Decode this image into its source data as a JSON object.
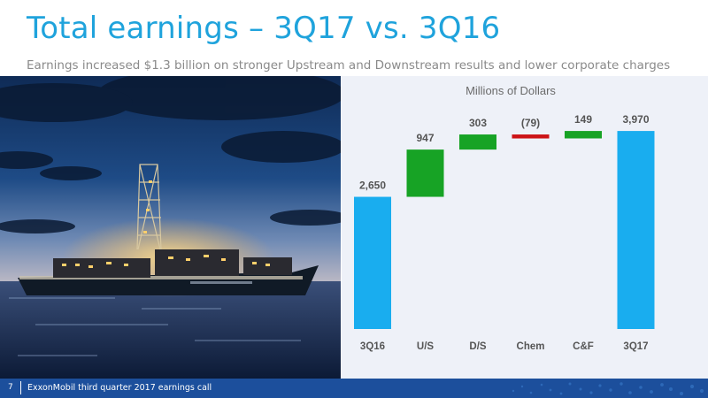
{
  "slide": {
    "title": "Total earnings – 3Q17 vs. 3Q16",
    "subtitle": "Earnings increased $1.3 billion on stronger Upstream and Downstream results and lower corporate charges"
  },
  "footer": {
    "page_number": "7",
    "text": "ExxonMobil third quarter 2017 earnings call"
  },
  "colors": {
    "title": "#1fa3dc",
    "total_bar": "#19adef",
    "increase_bar": "#17a325",
    "decrease_bar": "#cc1417",
    "panel_bg": "#eef1f8",
    "footer_bg": "#1c4f9c"
  },
  "chart_data": {
    "type": "bar",
    "subtype": "waterfall",
    "title": "Millions of Dollars",
    "categories": [
      "3Q16",
      "U/S",
      "D/S",
      "Chem",
      "C&F",
      "3Q17"
    ],
    "values": [
      2650,
      947,
      303,
      -79,
      149,
      3970
    ],
    "labels": [
      "2,650",
      "947",
      "303",
      "(79)",
      "149",
      "3,970"
    ],
    "bar_kinds": [
      "total",
      "increase",
      "increase",
      "decrease",
      "increase",
      "total"
    ],
    "ylim": [
      0,
      4200
    ],
    "grid": false,
    "legend": "none"
  }
}
